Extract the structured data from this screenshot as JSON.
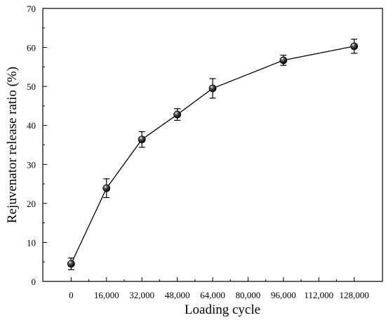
{
  "chart_data": {
    "type": "line",
    "title": "",
    "xlabel": "Loading cycle",
    "ylabel": "Rejuvenator release ratio (%)",
    "x_tick_labels": [
      "0",
      "16,000",
      "32,000",
      "48,000",
      "64,000",
      "80,000",
      "96,000",
      "112,000",
      "128,000"
    ],
    "x_ticks": [
      0,
      16000,
      32000,
      48000,
      64000,
      80000,
      96000,
      112000,
      128000
    ],
    "xlim": [
      -12800,
      140800
    ],
    "y_tick_labels": [
      "0",
      "10",
      "20",
      "30",
      "40",
      "50",
      "60",
      "70"
    ],
    "y_ticks": [
      0,
      10,
      20,
      30,
      40,
      50,
      60,
      70
    ],
    "ylim": [
      0,
      70
    ],
    "grid": false,
    "legend": "none",
    "series": [
      {
        "x": [
          0,
          16000,
          32000,
          48000,
          64000,
          96000,
          128000
        ],
        "y": [
          4.5,
          23.9,
          36.4,
          42.8,
          49.5,
          56.7,
          60.3
        ],
        "error": [
          1.5,
          2.4,
          2.0,
          1.5,
          2.5,
          1.3,
          1.8
        ],
        "color": "#000000",
        "marker": "circle"
      }
    ]
  }
}
